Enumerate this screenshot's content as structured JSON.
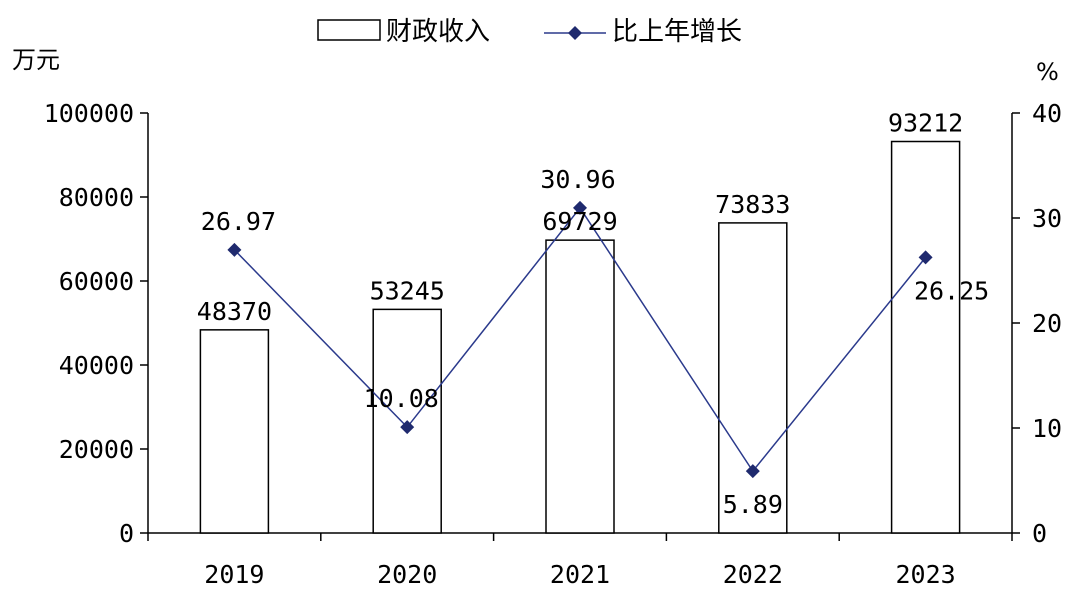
{
  "chart_data": {
    "type": "bar",
    "categories": [
      "2019",
      "2020",
      "2021",
      "2022",
      "2023"
    ],
    "series": [
      {
        "name": "财政收入",
        "type": "bar",
        "axis": "left",
        "values": [
          48370,
          53245,
          69729,
          73833,
          93212
        ],
        "labels": [
          "48370",
          "53245",
          "69729",
          "73833",
          "93212"
        ]
      },
      {
        "name": "比上年增长",
        "type": "line",
        "axis": "right",
        "values": [
          26.97,
          10.08,
          30.96,
          5.89,
          26.25
        ],
        "labels": [
          "26.97",
          "10.08",
          "30.96",
          "5.89",
          "26.25"
        ]
      }
    ],
    "y_left": {
      "label": "万元",
      "min": 0,
      "max": 100000,
      "ticks": [
        "0",
        "20000",
        "40000",
        "60000",
        "80000",
        "100000"
      ]
    },
    "y_right": {
      "label": "%",
      "min": 0,
      "max": 40,
      "ticks": [
        "0",
        "10",
        "20",
        "30",
        "40"
      ]
    },
    "grid": false,
    "legend_position": "top-center",
    "colors": {
      "bar_fill": "#ffffff",
      "bar_stroke": "#000000",
      "line": "#2b3a8c",
      "marker": "#1f2a6e"
    }
  }
}
